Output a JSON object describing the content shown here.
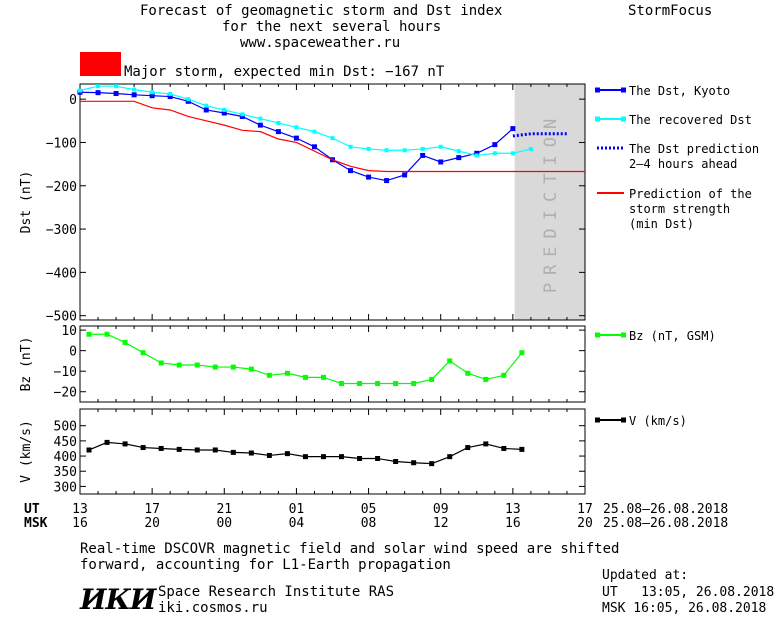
{
  "header": {
    "title_line1": "Forecast of geomagnetic storm and Dst index",
    "title_line2": "for the next several hours",
    "url": "www.spaceweather.ru",
    "brand": "StormFocus"
  },
  "storm": {
    "label": "Major storm, expected min Dst: −167 nT",
    "color": "#ff0000"
  },
  "colors": {
    "dst_kyoto": "#0000ff",
    "dst_recovered": "#00ffff",
    "dst_prediction": "#0000ff",
    "storm_strength": "#ff0000",
    "bz": "#00ff00",
    "v": "#000000",
    "prediction_zone": "#d9d9d9"
  },
  "chart_data": [
    {
      "type": "line",
      "ylabel": "Dst (nT)",
      "ylim": [
        -510,
        35
      ],
      "yticks": [
        0,
        -100,
        -200,
        -300,
        -400,
        -500
      ],
      "xlim": [
        13,
        41
      ],
      "prediction_zone_label": "PREDICTION",
      "prediction_zone_x": [
        37.1,
        41
      ],
      "legend_position": "right",
      "series": [
        {
          "name": "The Dst, Kyoto",
          "x": [
            13,
            14,
            15,
            16,
            17,
            18,
            19,
            20,
            21,
            22,
            23,
            24,
            25,
            26,
            27,
            28,
            29,
            30,
            31,
            32,
            33,
            34,
            35,
            36,
            37
          ],
          "y": [
            16,
            15,
            13,
            10,
            8,
            6,
            -5,
            -25,
            -32,
            -40,
            -60,
            -75,
            -90,
            -110,
            -140,
            -165,
            -180,
            -188,
            -175,
            -130,
            -145,
            -135,
            -125,
            -105,
            -68
          ]
        },
        {
          "name": "The recovered Dst",
          "x": [
            13,
            14,
            15,
            16,
            17,
            18,
            19,
            20,
            21,
            22,
            23,
            24,
            25,
            26,
            27,
            28,
            29,
            30,
            31,
            32,
            33,
            34,
            35,
            36,
            37,
            38
          ],
          "y": [
            20,
            30,
            30,
            22,
            16,
            12,
            0,
            -15,
            -25,
            -35,
            -45,
            -55,
            -65,
            -75,
            -90,
            -110,
            -115,
            -118,
            -118,
            -115,
            -110,
            -120,
            -130,
            -125,
            -125,
            -115
          ]
        },
        {
          "name": "The Dst prediction\n2–4 hours ahead",
          "x": [
            37,
            38,
            39,
            40
          ],
          "y": [
            -85,
            -80,
            -80,
            -80
          ]
        },
        {
          "name": "Prediction of the\nstorm strength\n(min Dst)",
          "x": [
            13,
            14,
            15,
            16,
            17,
            18,
            19,
            20,
            21,
            22,
            23,
            24,
            25,
            26,
            27,
            28,
            29,
            30,
            31,
            32,
            33,
            34,
            35,
            36,
            37,
            38,
            39,
            40,
            41
          ],
          "y": [
            -5,
            -5,
            -5,
            -5,
            -20,
            -25,
            -40,
            -50,
            -60,
            -72,
            -75,
            -92,
            -100,
            -120,
            -140,
            -155,
            -165,
            -167,
            -167,
            -167,
            -167,
            -167,
            -167,
            -167,
            -167,
            -167,
            -167,
            -167,
            -167
          ]
        }
      ]
    },
    {
      "type": "line",
      "ylabel": "Bz (nT)",
      "ylim": [
        -25,
        12
      ],
      "yticks": [
        10,
        0,
        -10,
        -20
      ],
      "xlim": [
        13,
        41
      ],
      "series": [
        {
          "name": "Bz (nT, GSM)",
          "x": [
            13.5,
            14.5,
            15.5,
            16.5,
            17.5,
            18.5,
            19.5,
            20.5,
            21.5,
            22.5,
            23.5,
            24.5,
            25.5,
            26.5,
            27.5,
            28.5,
            29.5,
            30.5,
            31.5,
            32.5,
            33.5,
            34.5,
            35.5,
            36.5,
            37.5
          ],
          "y": [
            8,
            8,
            4,
            -1,
            -6,
            -7,
            -7,
            -8,
            -8,
            -9,
            -12,
            -11,
            -13,
            -13,
            -16,
            -16,
            -16,
            -16,
            -16,
            -14,
            -5,
            -11,
            -14,
            -12,
            -1
          ]
        }
      ]
    },
    {
      "type": "line",
      "ylabel": "V (km/s)",
      "ylim": [
        275,
        555
      ],
      "yticks": [
        500,
        450,
        400,
        350,
        300
      ],
      "xlim": [
        13,
        41
      ],
      "series": [
        {
          "name": "V (km/s)",
          "x": [
            13.5,
            14.5,
            15.5,
            16.5,
            17.5,
            18.5,
            19.5,
            20.5,
            21.5,
            22.5,
            23.5,
            24.5,
            25.5,
            26.5,
            27.5,
            28.5,
            29.5,
            30.5,
            31.5,
            32.5,
            33.5,
            34.5,
            35.5,
            36.5,
            37.5
          ],
          "y": [
            420,
            445,
            440,
            428,
            425,
            422,
            420,
            420,
            412,
            410,
            402,
            408,
            398,
            398,
            398,
            392,
            392,
            382,
            378,
            375,
            398,
            428,
            440,
            425,
            422
          ]
        }
      ]
    }
  ],
  "axis": {
    "ut_label": "UT",
    "msk_label": "MSK",
    "ut_ticks": [
      "13",
      "17",
      "21",
      "01",
      "05",
      "09",
      "13",
      "17"
    ],
    "msk_ticks": [
      "16",
      "20",
      "00",
      "04",
      "08",
      "12",
      "16",
      "20"
    ],
    "ut_range": "25.08–26.08.2018",
    "msk_range": "25.08–26.08.2018"
  },
  "footer": {
    "note_line1": "Real-time DSCOVR magnetic field and solar wind speed are shifted",
    "note_line2": "forward, accounting for L1-Earth propagation",
    "logo_text": "ИКИ",
    "institute": "Space Research Institute RAS",
    "website": "iki.cosmos.ru",
    "updated_label": "Updated at:",
    "updated_ut": "UT   13:05, 26.08.2018",
    "updated_msk": "MSK 16:05, 26.08.2018"
  }
}
